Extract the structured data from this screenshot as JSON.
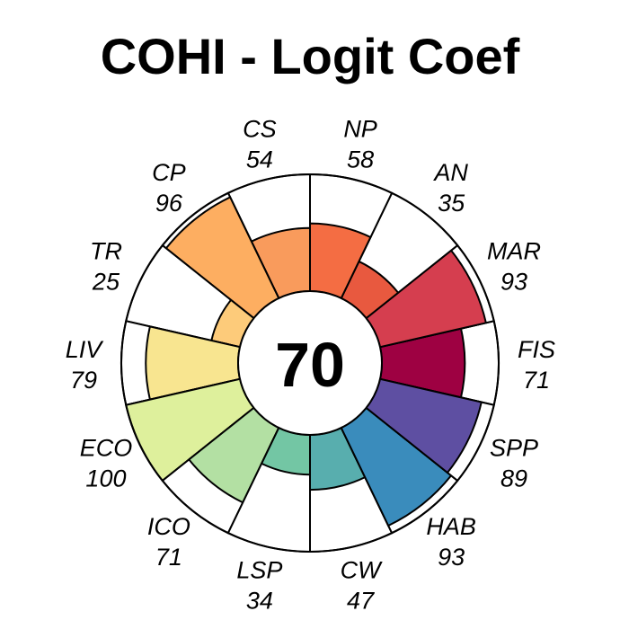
{
  "chart_data": {
    "type": "flower",
    "title": "COHI - Logit Coef",
    "center_value": "70",
    "max_value": 100,
    "petals": [
      {
        "code": "FIS",
        "score": 71,
        "color": "#9E0142"
      },
      {
        "code": "MAR",
        "score": 93,
        "color": "#D53E4F"
      },
      {
        "code": "AN",
        "score": 35,
        "color": "#E8593F"
      },
      {
        "code": "NP",
        "score": 58,
        "color": "#F46D43"
      },
      {
        "code": "CS",
        "score": 54,
        "color": "#F99B5C"
      },
      {
        "code": "CP",
        "score": 96,
        "color": "#FDAE61"
      },
      {
        "code": "TR",
        "score": 25,
        "color": "#FDCB7A"
      },
      {
        "code": "LIV",
        "score": 79,
        "color": "#F8E590"
      },
      {
        "code": "ECO",
        "score": 100,
        "color": "#DEF09C"
      },
      {
        "code": "ICO",
        "score": 71,
        "color": "#B3E0A3"
      },
      {
        "code": "LSP",
        "score": 34,
        "color": "#73C6A4"
      },
      {
        "code": "CW",
        "score": 47,
        "color": "#58AEAE"
      },
      {
        "code": "HAB",
        "score": 93,
        "color": "#3A8CBC"
      },
      {
        "code": "SPP",
        "score": 89,
        "color": "#5E4FA2"
      }
    ]
  }
}
